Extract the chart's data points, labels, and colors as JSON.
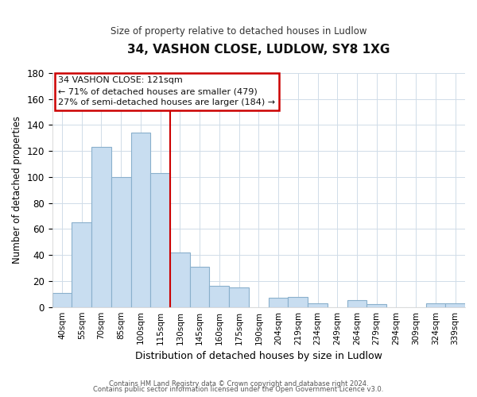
{
  "title": "34, VASHON CLOSE, LUDLOW, SY8 1XG",
  "subtitle": "Size of property relative to detached houses in Ludlow",
  "xlabel": "Distribution of detached houses by size in Ludlow",
  "ylabel": "Number of detached properties",
  "bar_labels": [
    "40sqm",
    "55sqm",
    "70sqm",
    "85sqm",
    "100sqm",
    "115sqm",
    "130sqm",
    "145sqm",
    "160sqm",
    "175sqm",
    "190sqm",
    "204sqm",
    "219sqm",
    "234sqm",
    "249sqm",
    "264sqm",
    "279sqm",
    "294sqm",
    "309sqm",
    "324sqm",
    "339sqm"
  ],
  "bar_values": [
    11,
    65,
    123,
    100,
    134,
    103,
    42,
    31,
    16,
    15,
    0,
    7,
    8,
    3,
    0,
    5,
    2,
    0,
    0,
    3,
    3
  ],
  "bar_color": "#c8ddf0",
  "bar_edge_color": "#8ab0cc",
  "ylim": [
    0,
    180
  ],
  "yticks": [
    0,
    20,
    40,
    60,
    80,
    100,
    120,
    140,
    160,
    180
  ],
  "vline_x": 5.5,
  "vline_color": "#cc0000",
  "annotation_title": "34 VASHON CLOSE: 121sqm",
  "annotation_line1": "← 71% of detached houses are smaller (479)",
  "annotation_line2": "27% of semi-detached houses are larger (184) →",
  "annotation_box_color": "#ffffff",
  "annotation_box_edge": "#cc0000",
  "footer1": "Contains HM Land Registry data © Crown copyright and database right 2024.",
  "footer2": "Contains public sector information licensed under the Open Government Licence v3.0."
}
